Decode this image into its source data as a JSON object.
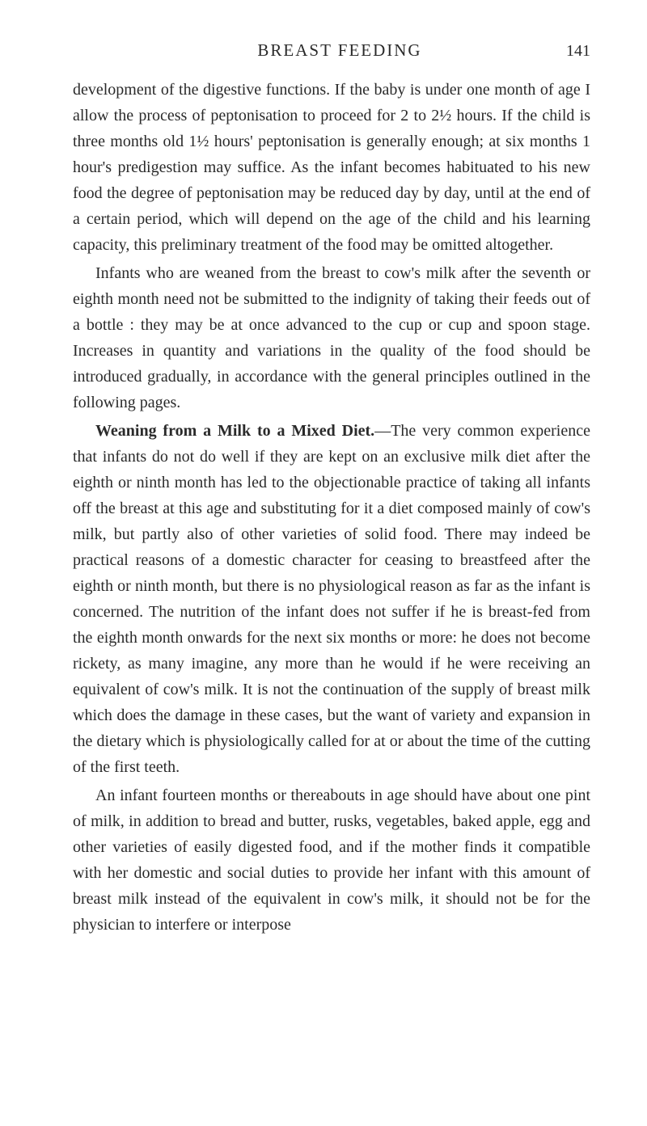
{
  "header": {
    "title": "BREAST FEEDING",
    "page_number": "141"
  },
  "paragraphs": {
    "p1": "development of the digestive functions. If the baby is under one month of age I allow the process of peptonisation to proceed for 2 to 2½ hours. If the child is three months old 1½ hours' peptonisa­tion is generally enough; at six months 1 hour's predigestion may suffice. As the infant becomes habituated to his new food the degree of peptonisation may be reduced day by day, until at the end of a certain period, which will depend on the age of the child and his learning capacity, this preliminary treatment of the food may be omitted altogether.",
    "p2": "Infants who are weaned from the breast to cow's milk after the seventh or eighth month need not be submitted to the in­dignity of taking their feeds out of a bottle : they may be at once advanced to the cup or cup and spoon stage. Increases in quantity and variations in the quality of the food should be introduced gradually, in accordance with the general principles outlined in the following pages.",
    "p3_heading": "Weaning from a Milk to a Mixed Diet.",
    "p3_body": "—The very common experience that infants do not do well if they are kept on an exclusive milk diet after the eighth or ninth month has led to the objectionable practice of taking all infants off the breast at this age and substituting for it a diet composed mainly of cow's milk, but partly also of other varieties of solid food. There may indeed be practical reasons of a domestic character for ceasing to breast­feed after the eighth or ninth month, but there is no physiological reason as far as the infant is concerned. The nutrition of the infant does not suffer if he is breast-fed from the eighth month onwards for the next six months or more: he does not become rickety, as many imagine, any more than he would if he were receiv­ing an equivalent of cow's milk. It is not the continuation of the supply of breast milk which does the damage in these cases, but the want of variety and expansion in the dietary which is physio­logically called for at or about the time of the cutting of the first teeth.",
    "p4": "An infant fourteen months or thereabouts in age should have about one pint of milk, in addition to bread and butter, rusks, vegetables, baked apple, egg and other varieties of easily digested food, and if the mother finds it compatible with her domestic and social duties to provide her infant with this amount of breast milk instead of the equivalent in cow's milk, it should not be for the physician to interfere or interpose"
  },
  "styling": {
    "background_color": "#ffffff",
    "text_color": "#2a2a2a",
    "body_font_size": 20,
    "header_font_size": 21,
    "line_height": 1.6
  }
}
